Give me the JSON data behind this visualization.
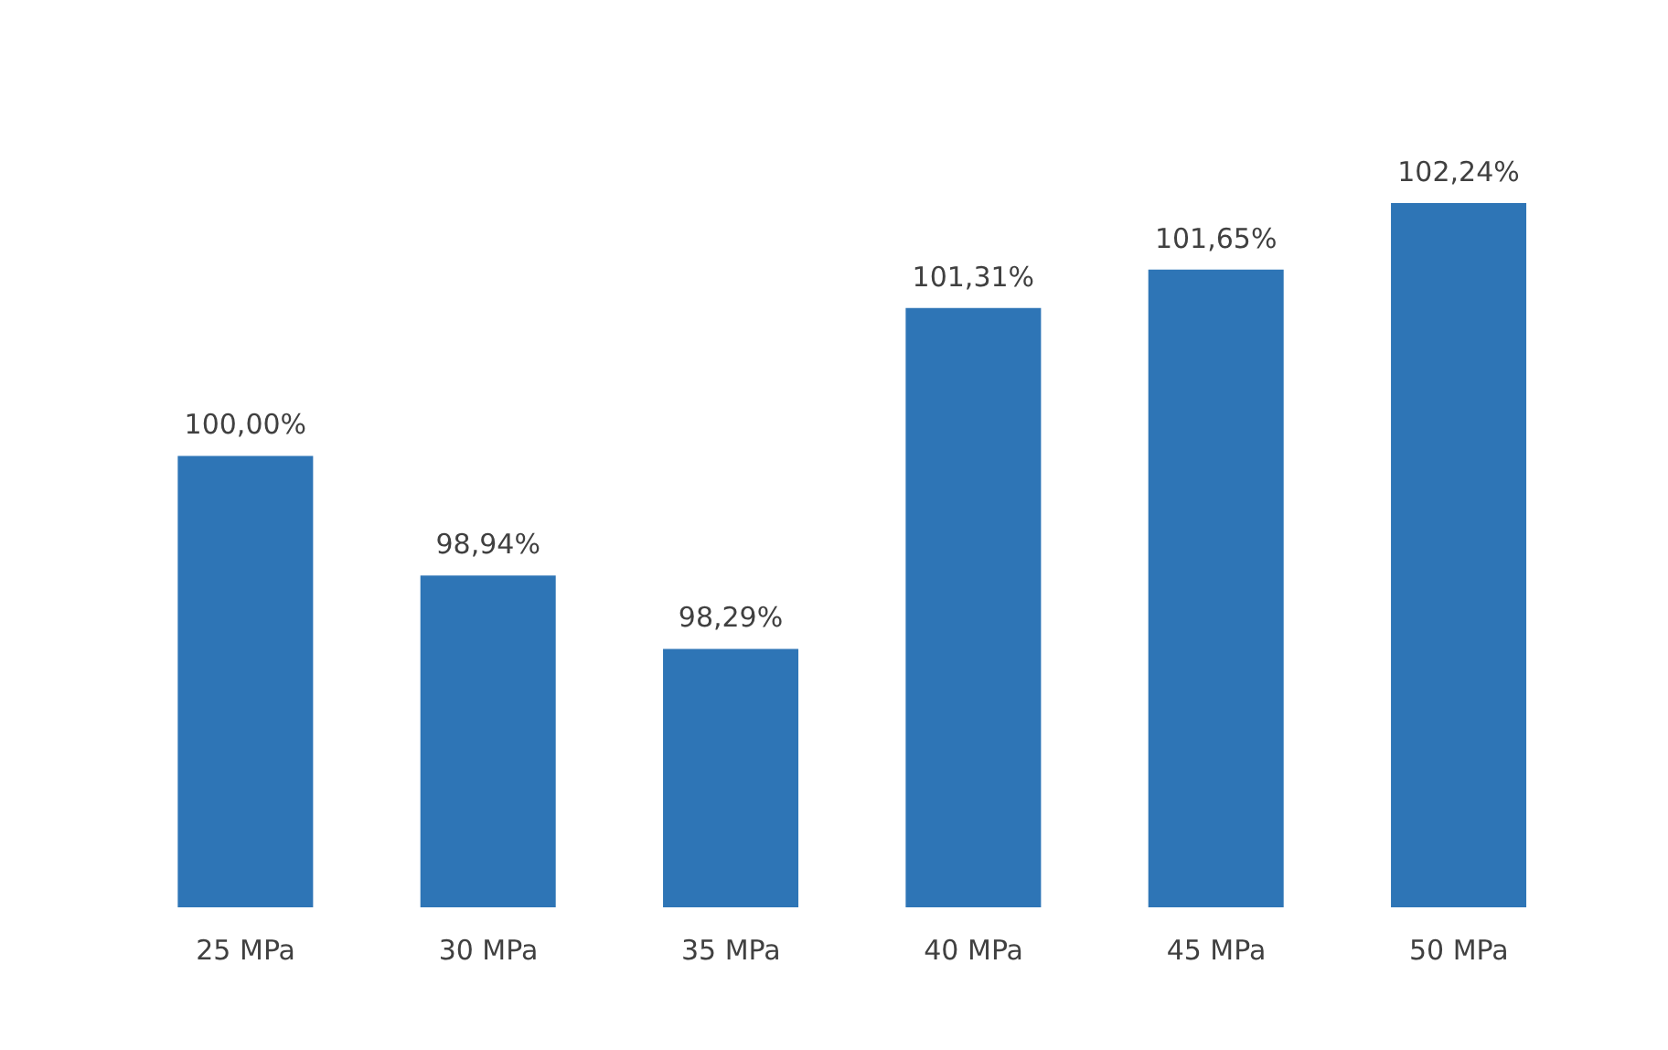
{
  "chart_data": {
    "type": "bar",
    "categories": [
      "25 MPa",
      "30 MPa",
      "35 MPa",
      "40 MPa",
      "45 MPa",
      "50 MPa"
    ],
    "values": [
      100.0,
      98.94,
      98.29,
      101.31,
      101.65,
      102.24
    ],
    "value_labels": [
      "100,00%",
      "98,94%",
      "98,29%",
      "101,31%",
      "101,65%",
      "102,24%"
    ],
    "color": "#2e75b6",
    "ylim": [
      96,
      102.24
    ],
    "tick_labels": "x",
    "grid": false,
    "legend": false
  }
}
